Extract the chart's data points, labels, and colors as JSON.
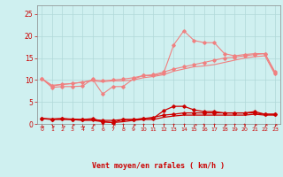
{
  "xlabel": "Vent moyen/en rafales ( km/h )",
  "bg_color": "#cff0f0",
  "grid_color": "#b0d8d8",
  "xlim": [
    -0.5,
    23.5
  ],
  "ylim": [
    0,
    27
  ],
  "yticks": [
    0,
    5,
    10,
    15,
    20,
    25
  ],
  "xticks": [
    0,
    1,
    2,
    3,
    4,
    5,
    6,
    7,
    8,
    9,
    10,
    11,
    12,
    13,
    14,
    15,
    16,
    17,
    18,
    19,
    20,
    21,
    22,
    23
  ],
  "line1_x": [
    0,
    1,
    2,
    3,
    4,
    5,
    6,
    7,
    8,
    9,
    10,
    11,
    12,
    13,
    14,
    15,
    16,
    17,
    18,
    19,
    20,
    21,
    22,
    23
  ],
  "line1_y": [
    10.3,
    8.3,
    8.5,
    8.5,
    8.6,
    10.2,
    6.8,
    8.5,
    8.5,
    10.2,
    11.0,
    11.0,
    11.5,
    18.0,
    21.2,
    19.0,
    18.5,
    18.5,
    16.0,
    15.5,
    15.8,
    16.0,
    16.0,
    11.5
  ],
  "line2_x": [
    0,
    1,
    2,
    3,
    4,
    5,
    6,
    7,
    8,
    9,
    10,
    11,
    12,
    13,
    14,
    15,
    16,
    17,
    18,
    19,
    20,
    21,
    22,
    23
  ],
  "line2_y": [
    10.3,
    8.6,
    9.0,
    9.2,
    9.5,
    10.0,
    9.8,
    10.0,
    10.2,
    10.5,
    11.0,
    11.2,
    11.8,
    12.5,
    13.0,
    13.5,
    14.0,
    14.5,
    15.0,
    15.2,
    15.5,
    15.8,
    16.0,
    11.8
  ],
  "line3_x": [
    0,
    1,
    2,
    3,
    4,
    5,
    6,
    7,
    8,
    9,
    10,
    11,
    12,
    13,
    14,
    15,
    16,
    17,
    18,
    19,
    20,
    21,
    22,
    23
  ],
  "line3_y": [
    10.3,
    8.8,
    9.0,
    9.2,
    9.5,
    9.8,
    9.6,
    9.8,
    9.8,
    10.0,
    10.5,
    10.8,
    11.2,
    12.0,
    12.5,
    13.0,
    13.2,
    13.5,
    14.0,
    14.5,
    15.0,
    15.3,
    15.5,
    11.2
  ],
  "line4_x": [
    0,
    1,
    2,
    3,
    4,
    5,
    6,
    7,
    8,
    9,
    10,
    11,
    12,
    13,
    14,
    15,
    16,
    17,
    18,
    19,
    20,
    21,
    22,
    23
  ],
  "line4_y": [
    1.2,
    1.1,
    1.2,
    1.1,
    1.0,
    1.2,
    0.5,
    0.3,
    1.0,
    1.0,
    1.2,
    1.3,
    3.0,
    4.0,
    4.0,
    3.2,
    2.8,
    2.8,
    2.5,
    2.5,
    2.5,
    2.8,
    2.2,
    2.2
  ],
  "line5_x": [
    0,
    1,
    2,
    3,
    4,
    5,
    6,
    7,
    8,
    9,
    10,
    11,
    12,
    13,
    14,
    15,
    16,
    17,
    18,
    19,
    20,
    21,
    22,
    23
  ],
  "line5_y": [
    1.2,
    1.1,
    1.2,
    1.0,
    1.0,
    1.0,
    0.8,
    0.8,
    1.0,
    1.0,
    1.2,
    1.5,
    2.0,
    2.2,
    2.5,
    2.5,
    2.5,
    2.5,
    2.5,
    2.5,
    2.5,
    2.5,
    2.2,
    2.2
  ],
  "line6_x": [
    0,
    1,
    2,
    3,
    4,
    5,
    6,
    7,
    8,
    9,
    10,
    11,
    12,
    13,
    14,
    15,
    16,
    17,
    18,
    19,
    20,
    21,
    22,
    23
  ],
  "line6_y": [
    1.2,
    1.0,
    1.0,
    1.0,
    0.8,
    0.8,
    0.5,
    0.3,
    0.5,
    0.8,
    1.0,
    1.0,
    1.5,
    1.8,
    2.0,
    2.0,
    2.0,
    2.0,
    2.0,
    2.0,
    2.0,
    2.2,
    2.0,
    2.0
  ],
  "color_light": "#f08080",
  "color_dark": "#cc0000",
  "arrow_labels": [
    "→",
    "↘",
    "↘",
    "↗",
    "→",
    "↗",
    "↑",
    "↗",
    "↑",
    "↗",
    "↑",
    "↑",
    "↑",
    "↑",
    "↑",
    "↗",
    "↑",
    "↑",
    "↗",
    "↑",
    "↑",
    "↗",
    "↗",
    "↗"
  ]
}
